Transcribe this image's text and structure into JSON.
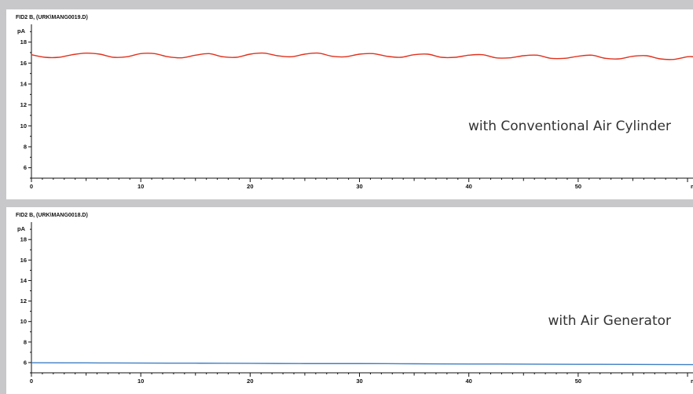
{
  "chart_data": [
    {
      "type": "line",
      "title": "FID2 B, (URK\\MANG0019.D)",
      "ylabel": "pA",
      "xlabel": "min",
      "annotation": "with Conventional Air Cylinder",
      "xlim": [
        0,
        60.5
      ],
      "ylim": [
        5,
        19.7
      ],
      "x_ticks": [
        0,
        10,
        20,
        30,
        40,
        50
      ],
      "y_ticks": [
        6,
        8,
        10,
        12,
        14,
        16,
        18
      ],
      "series": [
        {
          "color": "#e0321e",
          "x": [
            0,
            1.25,
            2.5,
            3.75,
            5,
            6.25,
            7.5,
            8.75,
            10,
            11.25,
            12.5,
            13.75,
            15,
            16.25,
            17.5,
            18.75,
            20,
            21.25,
            22.5,
            23.75,
            25,
            26.25,
            27.5,
            28.75,
            30,
            31.25,
            32.5,
            33.75,
            35,
            36.25,
            37.5,
            38.75,
            40,
            41.25,
            42.5,
            43.75,
            45,
            46.25,
            47.5,
            48.75,
            50,
            51.25,
            52.5,
            53.75,
            55,
            56.25,
            57.5,
            58.75,
            60,
            60.5
          ],
          "values": [
            16.8,
            16.55,
            16.55,
            16.8,
            16.95,
            16.85,
            16.55,
            16.6,
            16.9,
            16.9,
            16.6,
            16.5,
            16.75,
            16.9,
            16.6,
            16.55,
            16.85,
            16.95,
            16.7,
            16.6,
            16.85,
            16.95,
            16.65,
            16.6,
            16.85,
            16.9,
            16.65,
            16.55,
            16.8,
            16.85,
            16.55,
            16.55,
            16.75,
            16.8,
            16.5,
            16.5,
            16.7,
            16.75,
            16.45,
            16.45,
            16.65,
            16.75,
            16.45,
            16.4,
            16.65,
            16.7,
            16.4,
            16.35,
            16.6,
            16.6
          ]
        }
      ]
    },
    {
      "type": "line",
      "title": "FID2 B, (URK\\MANG0018.D)",
      "ylabel": "pA",
      "xlabel": "min",
      "annotation": "with Air Generator",
      "xlim": [
        0,
        60.5
      ],
      "ylim": [
        5,
        19.7
      ],
      "x_ticks": [
        0,
        10,
        20,
        30,
        40,
        50
      ],
      "y_ticks": [
        6,
        8,
        10,
        12,
        14,
        16,
        18
      ],
      "series": [
        {
          "color": "#3f7fc4",
          "x": [
            0,
            5,
            10,
            15,
            20,
            25,
            30,
            35,
            40,
            45,
            50,
            55,
            60.5
          ],
          "values": [
            5.98,
            5.97,
            5.95,
            5.94,
            5.92,
            5.9,
            5.9,
            5.88,
            5.86,
            5.85,
            5.83,
            5.82,
            5.8
          ]
        }
      ]
    }
  ]
}
